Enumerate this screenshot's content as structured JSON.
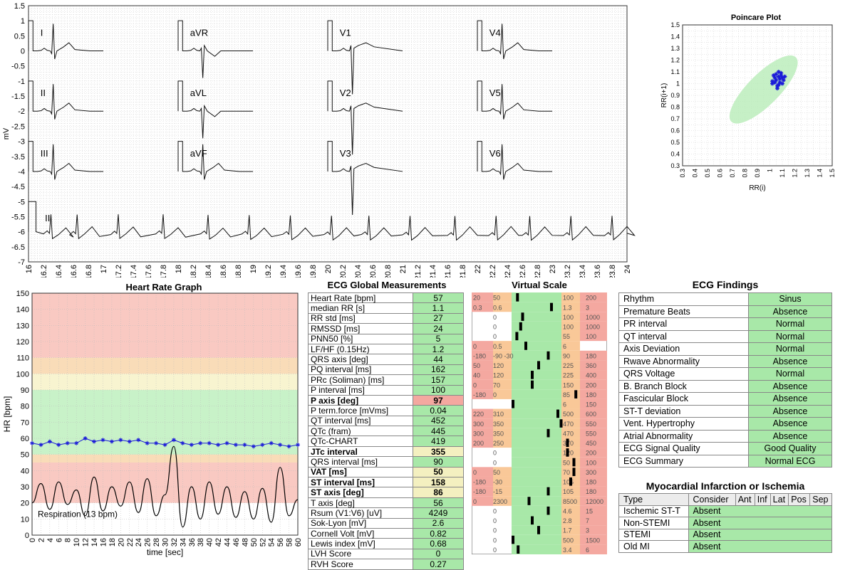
{
  "ecg": {
    "ylabel": "mV",
    "yticks": [
      "1.5",
      "1",
      "0.5",
      "0",
      "-0.5",
      "-1",
      "-1.5",
      "-2",
      "-2.5",
      "-3",
      "-3.5",
      "-4",
      "-4.5",
      "-5",
      "-5.5",
      "-6",
      "-6.5",
      "-7"
    ],
    "xticks": [
      "16",
      "16.2",
      "16.4",
      "16.6",
      "16.8",
      "17",
      "17.2",
      "17.4",
      "17.6",
      "17.8",
      "18",
      "18.2",
      "18.4",
      "18.6",
      "18.8",
      "19",
      "19.2",
      "19.4",
      "19.6",
      "19.8",
      "20",
      "20.2",
      "20.4",
      "20.6",
      "20.8",
      "21",
      "21.2",
      "21.4",
      "21.6",
      "21.8",
      "22",
      "22.2",
      "22.4",
      "22.6",
      "22.8",
      "23",
      "23.2",
      "23.4",
      "23.6",
      "23.8",
      "24"
    ],
    "leads": [
      "I",
      "aVR",
      "V1",
      "V4",
      "II",
      "aVL",
      "V2",
      "V5",
      "III",
      "aVF",
      "V3",
      "V6"
    ],
    "rhythm_lead": "II"
  },
  "chart_data": [
    {
      "type": "line",
      "title": "",
      "ylabel": "mV",
      "xlim": [
        16,
        24
      ],
      "ylim": [
        -7,
        1.5
      ],
      "series": [
        {
          "lead": "II",
          "x": [
            16.85,
            17.35,
            17.7,
            18.3,
            18.6,
            18.85,
            19.4,
            19.65,
            19.85,
            20.45,
            20.55,
            21.05,
            21.4,
            21.95,
            22.4,
            22.9,
            23.4,
            23.9
          ],
          "values": [
            -6.2,
            -5.5,
            -6.2,
            -6.3,
            -5.55,
            -6.2,
            -6.3,
            -5.55,
            -6.3,
            -6.3,
            -5.55,
            -6.3,
            -5.55,
            -6.3,
            -5.6,
            -6.3,
            -5.55,
            -6.3
          ]
        }
      ]
    },
    {
      "type": "scatter",
      "title": "Poincare Plot",
      "xlabel": "RR(i)",
      "ylabel": "RR(i+1)",
      "xlim": [
        0.3,
        1.5
      ],
      "ylim": [
        0.3,
        1.5
      ],
      "x": [
        1.02,
        1.05,
        1.07,
        1.08,
        1.1,
        1.03,
        1.06,
        1.09,
        1.11,
        1.04,
        1.07,
        1.1,
        1.05,
        1.08,
        1.02,
        1.06,
        1.09,
        1.12,
        1.04,
        1.07
      ],
      "y": [
        1.0,
        1.03,
        1.06,
        1.01,
        1.05,
        1.07,
        0.98,
        1.09,
        1.03,
        1.05,
        1.1,
        1.0,
        1.08,
        1.04,
        1.02,
        0.96,
        1.07,
        1.06,
        1.01,
        0.99
      ]
    },
    {
      "type": "line",
      "title": "Heart Rate Graph",
      "xlabel": "time [sec]",
      "ylabel": "HR [bpm]",
      "xlim": [
        0,
        60
      ],
      "ylim": [
        0,
        150
      ],
      "x": [
        0,
        2,
        4,
        6,
        8,
        10,
        12,
        14,
        16,
        18,
        20,
        22,
        24,
        26,
        28,
        30,
        32,
        34,
        36,
        38,
        40,
        42,
        44,
        46,
        48,
        50,
        52,
        54,
        56,
        58,
        60
      ],
      "series": [
        {
          "name": "HR",
          "values": [
            57,
            56,
            58,
            56,
            57,
            57,
            60,
            58,
            59,
            58,
            59,
            58,
            59,
            57,
            57,
            56,
            59,
            57,
            56,
            57,
            57,
            56,
            57,
            56,
            56,
            55,
            56,
            57,
            56,
            55,
            56
          ]
        },
        {
          "name": "Respiration (13 bpm)",
          "values": [
            20,
            32,
            16,
            33,
            19,
            28,
            12,
            36,
            15,
            30,
            18,
            33,
            14,
            35,
            12,
            25,
            55,
            5,
            30,
            10,
            33,
            13,
            30,
            11,
            27,
            10,
            29,
            8,
            42,
            12,
            22
          ]
        }
      ]
    }
  ],
  "hr_graph": {
    "title": "Heart Rate Graph",
    "xlabel": "time [sec]",
    "ylabel": "HR [bpm]",
    "yticks": [
      "0",
      "10",
      "20",
      "30",
      "40",
      "50",
      "60",
      "70",
      "80",
      "90",
      "100",
      "110",
      "120",
      "130",
      "140",
      "150"
    ],
    "xticks": [
      "0",
      "2",
      "4",
      "6",
      "8",
      "10",
      "12",
      "14",
      "16",
      "18",
      "20",
      "22",
      "24",
      "26",
      "28",
      "30",
      "32",
      "34",
      "36",
      "38",
      "40",
      "42",
      "44",
      "46",
      "48",
      "50",
      "52",
      "54",
      "56",
      "58",
      "60"
    ],
    "resp_label": "Respiration (13 bpm)"
  },
  "poincare": {
    "title": "Poincare Plot",
    "xlabel": "RR(i)",
    "ylabel": "RR(i+1)",
    "ticks": [
      "0.3",
      "0.4",
      "0.5",
      "0.6",
      "0.7",
      "0.8",
      "0.9",
      "1",
      "1.1",
      "1.2",
      "1.3",
      "1.4",
      "1.5"
    ]
  },
  "measurements": {
    "title": "ECG Global Measurements",
    "scale_title": "Virtual Scale",
    "rows": [
      {
        "name": "Heart Rate [bpm]",
        "value": "57",
        "bold": false,
        "color": "#a8e8a8",
        "s": [
          "20",
          "50",
          "100",
          "200"
        ],
        "m": 0.07
      },
      {
        "name": "median RR [s]",
        "value": "1.1",
        "bold": false,
        "color": "#a8e8a8",
        "s": [
          "0.3",
          "0.6",
          "1.3",
          "3"
        ],
        "m": 0.6
      },
      {
        "name": "RR std [ms]",
        "value": "27",
        "bold": false,
        "color": "#a8e8a8",
        "s": [
          "",
          "0",
          "100",
          "1000"
        ],
        "m": 0.15
      },
      {
        "name": "RMSSD [ms]",
        "value": "24",
        "bold": false,
        "color": "#a8e8a8",
        "s": [
          "",
          "0",
          "100",
          "1000"
        ],
        "m": 0.12
      },
      {
        "name": "PNN50 [%]",
        "value": "5",
        "bold": false,
        "color": "#a8e8a8",
        "s": [
          "",
          "0",
          "55",
          "100"
        ],
        "m": 0.06
      },
      {
        "name": "LF/HF (0.15Hz)",
        "value": "1.2",
        "bold": false,
        "color": "#a8e8a8",
        "s": [
          "0",
          "0.5",
          "6",
          ""
        ],
        "m": 0.2
      },
      {
        "name": "QRS axis [deg]",
        "value": "44",
        "bold": false,
        "color": "#a8e8a8",
        "s": [
          "-180",
          "-90 -30",
          "90",
          "180"
        ],
        "m": 0.55
      },
      {
        "name": "PQ interval [ms]",
        "value": "162",
        "bold": false,
        "color": "#a8e8a8",
        "s": [
          "50",
          "120",
          "225",
          "360"
        ],
        "m": 0.4
      },
      {
        "name": "PRc (Soliman) [ms]",
        "value": "157",
        "bold": false,
        "color": "#a8e8a8",
        "s": [
          "40",
          "120",
          "225",
          "400"
        ],
        "m": 0.3
      },
      {
        "name": "P interval [ms]",
        "value": "100",
        "bold": false,
        "color": "#a8e8a8",
        "s": [
          "0",
          "70",
          "150",
          "200"
        ],
        "m": 0.3
      },
      {
        "name": "P axis [deg]",
        "value": "97",
        "bold": true,
        "color": "#f4a8a0",
        "s": [
          "-180",
          "0",
          "85",
          "180"
        ],
        "m": 0.98
      },
      {
        "name": "P term.force [mVms]",
        "value": "0.04",
        "bold": false,
        "color": "#a8e8a8",
        "s": [
          "",
          "",
          "6",
          "150"
        ],
        "m": 0.0
      },
      {
        "name": "QT interval [ms]",
        "value": "452",
        "bold": false,
        "color": "#a8e8a8",
        "s": [
          "220",
          "310",
          "500",
          "600"
        ],
        "m": 0.7
      },
      {
        "name": "QTc (fram)",
        "value": "445",
        "bold": false,
        "color": "#a8e8a8",
        "s": [
          "300",
          "350",
          "470",
          "550"
        ],
        "m": 0.75
      },
      {
        "name": "QTc-CHART",
        "value": "419",
        "bold": false,
        "color": "#a8e8a8",
        "s": [
          "300",
          "350",
          "470",
          "550"
        ],
        "m": 0.55
      },
      {
        "name": "JTc interval",
        "value": "355",
        "bold": true,
        "color": "#f4f0c0",
        "s": [
          "200",
          "250",
          "370",
          "450"
        ],
        "m": 0.85
      },
      {
        "name": "QRS interval [ms]",
        "value": "90",
        "bold": false,
        "color": "#a8e8a8",
        "s": [
          "",
          "0",
          "120",
          "200"
        ],
        "m": 0.85
      },
      {
        "name": "VAT [ms]",
        "value": "50",
        "bold": true,
        "color": "#f4f0c0",
        "s": [
          "",
          "0",
          "50",
          "100"
        ],
        "m": 0.95
      },
      {
        "name": "ST interval [ms]",
        "value": "158",
        "bold": true,
        "color": "#f4f0c0",
        "s": [
          "0",
          "50",
          "70",
          "300"
        ],
        "m": 0.95
      },
      {
        "name": "ST axis [deg]",
        "value": "86",
        "bold": true,
        "color": "#f4f0c0",
        "s": [
          "-180",
          "-30",
          "105",
          "180"
        ],
        "m": 0.9
      },
      {
        "name": "T axis [deg]",
        "value": "56",
        "bold": false,
        "color": "#a8e8a8",
        "s": [
          "-180",
          "-15",
          "105",
          "180"
        ],
        "m": 0.55
      },
      {
        "name": "Rsum (V1:V6) [uV]",
        "value": "4249",
        "bold": false,
        "color": "#a8e8a8",
        "s": [
          "0",
          "2300",
          "8500",
          "12000"
        ],
        "m": 0.25
      },
      {
        "name": "Sok-Lyon [mV]",
        "value": "2.6",
        "bold": false,
        "color": "#a8e8a8",
        "s": [
          "",
          "0",
          "4.6",
          "15"
        ],
        "m": 0.55
      },
      {
        "name": "Cornell Volt [mV]",
        "value": "0.82",
        "bold": false,
        "color": "#a8e8a8",
        "s": [
          "",
          "0",
          "2.8",
          "7"
        ],
        "m": 0.3
      },
      {
        "name": "Lewis index [mV]",
        "value": "0.68",
        "bold": false,
        "color": "#a8e8a8",
        "s": [
          "",
          "0",
          "1.7",
          "3"
        ],
        "m": 0.4
      },
      {
        "name": "LVH Score",
        "value": "0",
        "bold": false,
        "color": "#a8e8a8",
        "s": [
          "",
          "0",
          "500",
          "1500"
        ],
        "m": 0.0
      },
      {
        "name": "RVH Score",
        "value": "0.27",
        "bold": false,
        "color": "#a8e8a8",
        "s": [
          "",
          "0",
          "3.4",
          "6"
        ],
        "m": 0.08
      }
    ]
  },
  "findings": {
    "title": "ECG Findings",
    "rows": [
      {
        "name": "Rhythm",
        "value": "Sinus"
      },
      {
        "name": "Premature Beats",
        "value": "Absence"
      },
      {
        "name": "PR interval",
        "value": "Normal"
      },
      {
        "name": "QT interval",
        "value": "Normal"
      },
      {
        "name": "Axis Deviation",
        "value": "Normal"
      },
      {
        "name": "Rwave Abnormality",
        "value": "Absence"
      },
      {
        "name": "QRS Voltage",
        "value": "Normal"
      },
      {
        "name": "B. Branch Block",
        "value": "Absence"
      },
      {
        "name": "Fascicular Block",
        "value": "Absence"
      },
      {
        "name": "ST-T deviation",
        "value": "Absence"
      },
      {
        "name": "Vent. Hypertrophy",
        "value": "Absence"
      },
      {
        "name": "Atrial Abnormality",
        "value": "Absence"
      },
      {
        "name": "ECG Signal Quality",
        "value": "Good Quality"
      },
      {
        "name": "ECG Summary",
        "value": "Normal ECG"
      }
    ]
  },
  "mi": {
    "title": "Myocardial Infarction or Ischemia",
    "header": [
      "Type",
      "Consider",
      "Ant",
      "Inf",
      "Lat",
      "Pos",
      "Sep"
    ],
    "rows": [
      {
        "name": "Ischemic ST-T",
        "value": "Absent"
      },
      {
        "name": "Non-STEMI",
        "value": "Absent"
      },
      {
        "name": "STEMI",
        "value": "Absent"
      },
      {
        "name": "Old MI",
        "value": "Absent"
      }
    ]
  },
  "colors": {
    "green": "#a8e8a8",
    "red": "#f4a8a0",
    "yellow": "#f4f0c0",
    "orange": "#f4c890",
    "trace": "#111111",
    "hr": "#1a1ad8"
  }
}
